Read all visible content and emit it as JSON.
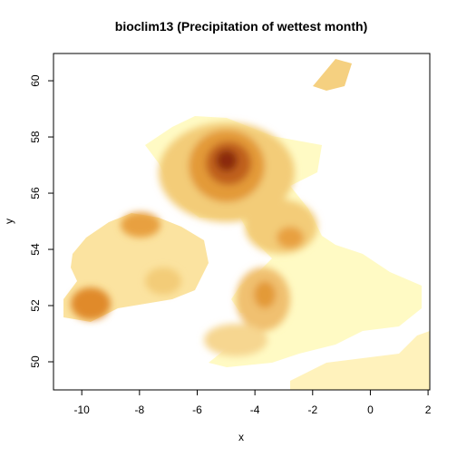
{
  "chart_data": {
    "type": "raster",
    "title": "bioclim13 (Precipitation of wettest month)",
    "x_label": "x",
    "y_label": "y",
    "xlim": [
      -10.98,
      2.06
    ],
    "ylim": [
      49,
      60.97
    ],
    "xticks": [
      -10,
      -8,
      -6,
      -4,
      -2,
      0,
      2
    ],
    "yticks": [
      50,
      52,
      54,
      56,
      58,
      60
    ]
  }
}
